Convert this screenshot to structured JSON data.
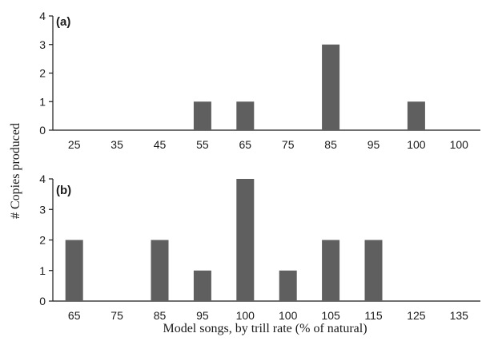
{
  "chart_data": [
    {
      "type": "bar",
      "panel_label": "(a)",
      "categories": [
        "25",
        "35",
        "45",
        "55",
        "65",
        "75",
        "85",
        "95",
        "100",
        "100"
      ],
      "values": [
        0,
        0,
        0,
        1,
        1,
        0,
        3,
        0,
        1,
        0
      ],
      "ylim": [
        0,
        4
      ],
      "yticks": [
        0,
        1,
        2,
        3,
        4
      ],
      "xlabel": "",
      "ylabel": "",
      "grid": false,
      "color": "#5f5f5f"
    },
    {
      "type": "bar",
      "panel_label": "(b)",
      "categories": [
        "65",
        "75",
        "85",
        "95",
        "100",
        "100",
        "105",
        "115",
        "125",
        "135"
      ],
      "values": [
        2,
        0,
        2,
        1,
        4,
        1,
        2,
        2,
        0,
        0
      ],
      "ylim": [
        0,
        4
      ],
      "yticks": [
        0,
        1,
        2,
        3,
        4
      ],
      "xlabel": "Model songs, by trill rate (% of natural)",
      "ylabel": "",
      "grid": false,
      "color": "#5f5f5f"
    }
  ],
  "shared_ylabel": "# Copies produced"
}
